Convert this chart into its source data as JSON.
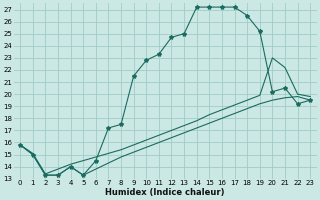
{
  "xlabel": "Humidex (Indice chaleur)",
  "xlim": [
    -0.5,
    23.5
  ],
  "ylim": [
    13,
    27.5
  ],
  "yticks": [
    13,
    14,
    15,
    16,
    17,
    18,
    19,
    20,
    21,
    22,
    23,
    24,
    25,
    26,
    27
  ],
  "xticks": [
    0,
    1,
    2,
    3,
    4,
    5,
    6,
    7,
    8,
    9,
    10,
    11,
    12,
    13,
    14,
    15,
    16,
    17,
    18,
    19,
    20,
    21,
    22,
    23
  ],
  "bg_color": "#cce8e4",
  "grid_color": "#a0ccc8",
  "line_color": "#1a6b60",
  "main_x": [
    0,
    1,
    2,
    3,
    4,
    5,
    6,
    7,
    8,
    9,
    10,
    11,
    12,
    13,
    14,
    15,
    16,
    17,
    18,
    19,
    20,
    21,
    22,
    23
  ],
  "main_y": [
    15.8,
    15.0,
    13.3,
    13.3,
    14.0,
    13.3,
    14.5,
    17.2,
    17.5,
    21.5,
    22.8,
    23.3,
    24.7,
    25.0,
    27.2,
    27.2,
    27.2,
    27.2,
    26.5,
    25.2,
    20.2,
    20.5,
    19.2,
    19.5
  ],
  "line2_x": [
    0,
    1,
    2,
    3,
    4,
    5,
    6,
    7,
    8,
    9,
    10,
    11,
    12,
    13,
    14,
    15,
    16,
    17,
    18,
    19,
    20,
    21,
    22,
    23
  ],
  "line2_y": [
    15.8,
    15.1,
    13.4,
    13.8,
    14.2,
    14.5,
    14.8,
    15.1,
    15.4,
    15.8,
    16.2,
    16.6,
    17.0,
    17.4,
    17.8,
    18.3,
    18.7,
    19.1,
    19.5,
    19.9,
    23.0,
    22.2,
    20.0,
    19.8
  ],
  "line3_x": [
    0,
    1,
    2,
    3,
    4,
    5,
    6,
    7,
    8,
    9,
    10,
    11,
    12,
    13,
    14,
    15,
    16,
    17,
    18,
    19,
    20,
    21,
    22,
    23
  ],
  "line3_y": [
    15.8,
    15.0,
    13.3,
    13.3,
    14.0,
    13.3,
    13.8,
    14.3,
    14.8,
    15.2,
    15.6,
    16.0,
    16.4,
    16.8,
    17.2,
    17.6,
    18.0,
    18.4,
    18.8,
    19.2,
    19.5,
    19.7,
    19.8,
    19.5
  ]
}
